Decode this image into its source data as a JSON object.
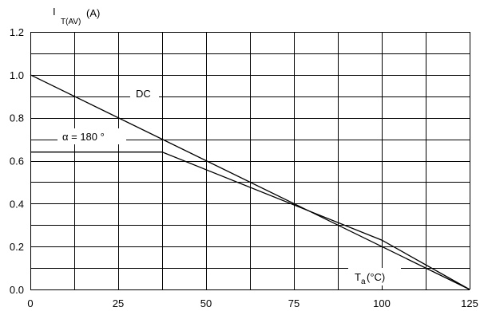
{
  "chart_data": {
    "type": "line",
    "title": "",
    "ylabel_main": "I",
    "ylabel_sub": "T(AV)",
    "ylabel_unit": "(A)",
    "xlabel_main": "T",
    "xlabel_sub": "a",
    "xlabel_unit": "(°C)",
    "xlim": [
      0,
      125
    ],
    "ylim": [
      0,
      1.2
    ],
    "x_ticks": [
      "0",
      "25",
      "50",
      "75",
      "100",
      "125"
    ],
    "x_tick_values": [
      0,
      25,
      50,
      75,
      100,
      125
    ],
    "y_ticks": [
      "0.0",
      "0.2",
      "0.4",
      "0.6",
      "0.8",
      "1.0",
      "1.2"
    ],
    "y_tick_values": [
      0,
      0.2,
      0.4,
      0.6,
      0.8,
      1.0,
      1.2
    ],
    "x_grid_step": 12.5,
    "y_grid_step": 0.1,
    "grid": true,
    "series": [
      {
        "name": "DC",
        "points": [
          [
            0,
            1.0
          ],
          [
            125,
            0.0
          ]
        ]
      },
      {
        "name": "α = 180 °",
        "points": [
          [
            0,
            0.64
          ],
          [
            37.5,
            0.64
          ],
          [
            100,
            0.23
          ],
          [
            125,
            0.0
          ]
        ]
      }
    ]
  }
}
